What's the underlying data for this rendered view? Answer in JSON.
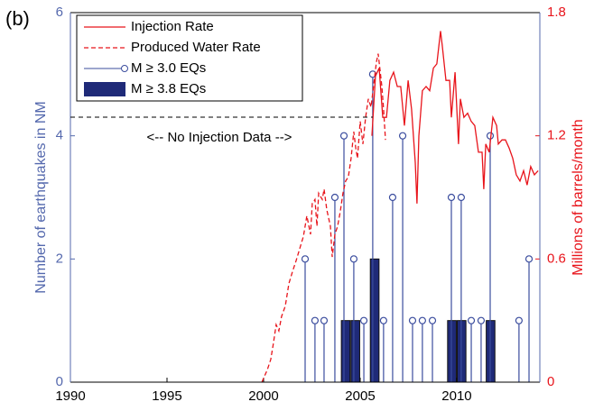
{
  "chart_data": {
    "type": "combo",
    "panel_label": "(b)",
    "annotation": "<-- No Injection Data -->",
    "ylabel": "Number of earthquakes in NM",
    "y2label": "Millions of barrels/month",
    "xlim": [
      1990,
      2014.3
    ],
    "xticks": [
      1990,
      1995,
      2000,
      2005,
      2010
    ],
    "ylim": [
      0,
      6
    ],
    "yticks": [
      0,
      2,
      4,
      6
    ],
    "y2lim": [
      0,
      1.8
    ],
    "y2ticks": [
      0,
      0.6,
      1.2,
      1.8
    ],
    "legend": "upper left",
    "series": [
      {
        "name": "Injection Rate",
        "type": "line",
        "linestyle": "solid",
        "color": "#e8141b",
        "axis": "y2",
        "x": [
          2005.61,
          2005.79,
          2005.98,
          2006.17,
          2006.36,
          2006.54,
          2006.73,
          2006.92,
          2007.1,
          2007.29,
          2007.48,
          2007.66,
          2007.85,
          2007.94,
          2008.04,
          2008.22,
          2008.41,
          2008.6,
          2008.79,
          2008.97,
          2009.16,
          2009.25,
          2009.44,
          2009.63,
          2009.72,
          2009.91,
          2010.09,
          2010.19,
          2010.37,
          2010.56,
          2010.75,
          2010.93,
          2011.12,
          2011.31,
          2011.4,
          2011.5,
          2011.68,
          2011.87,
          2012.06,
          2012.15,
          2012.34,
          2012.52,
          2012.71,
          2012.9,
          2013.08,
          2013.27,
          2013.46,
          2013.64,
          2013.83,
          2014.02,
          2014.21
        ],
        "values": [
          1.2,
          1.49,
          1.53,
          1.29,
          1.29,
          1.47,
          1.51,
          1.44,
          1.44,
          1.25,
          1.47,
          1.33,
          1.07,
          0.87,
          1.2,
          1.42,
          1.44,
          1.42,
          1.53,
          1.55,
          1.71,
          1.64,
          1.47,
          1.47,
          1.29,
          1.51,
          1.16,
          1.38,
          1.29,
          1.31,
          1.27,
          1.25,
          1.12,
          1.12,
          0.94,
          1.16,
          1.12,
          1.29,
          1.25,
          1.16,
          1.18,
          1.18,
          1.14,
          1.09,
          1.01,
          0.98,
          1.03,
          0.96,
          1.05,
          1.01,
          1.03
        ]
      },
      {
        "name": "Produced Water Rate",
        "type": "line",
        "linestyle": "dashed",
        "color": "#e8141b",
        "axis": "y2",
        "x": [
          1999.91,
          2000.19,
          2000.37,
          2000.51,
          2000.65,
          2000.79,
          2000.93,
          2001.12,
          2001.31,
          2001.5,
          2001.68,
          2001.87,
          2002.06,
          2002.24,
          2002.43,
          2002.52,
          2002.66,
          2002.76,
          2002.85,
          2003.04,
          2003.13,
          2003.27,
          2003.46,
          2003.55,
          2003.69,
          2003.83,
          2003.97,
          2004.11,
          2004.25,
          2004.39,
          2004.53,
          2004.67,
          2004.77,
          2004.86,
          2005.0,
          2005.14,
          2005.28,
          2005.42,
          2005.56,
          2005.7,
          2005.84,
          2005.93,
          2006.03,
          2006.12,
          2006.21,
          2006.31
        ],
        "values": [
          0,
          0.06,
          0.11,
          0.19,
          0.28,
          0.25,
          0.32,
          0.37,
          0.48,
          0.54,
          0.59,
          0.65,
          0.71,
          0.81,
          0.72,
          0.87,
          0.89,
          0.76,
          0.92,
          0.89,
          0.94,
          0.84,
          0.76,
          0.61,
          0.72,
          0.76,
          0.83,
          0.92,
          0.98,
          1.0,
          1.09,
          1.22,
          1.14,
          1.09,
          1.27,
          1.16,
          1.29,
          1.38,
          1.34,
          1.45,
          1.56,
          1.6,
          1.52,
          1.44,
          1.33,
          1.18
        ]
      },
      {
        "name": "M ≥ 3.0 EQs",
        "type": "stem",
        "color": "#3b4d9e",
        "x": [
          2002.15,
          2002.66,
          2003.13,
          2003.69,
          2004.16,
          2004.67,
          2005.19,
          2005.65,
          2006.21,
          2006.68,
          2007.2,
          2007.71,
          2008.22,
          2008.74,
          2009.72,
          2010.23,
          2010.75,
          2011.26,
          2011.73,
          2013.22,
          2013.74
        ],
        "values": [
          2,
          1,
          1,
          3,
          4,
          2,
          1,
          5,
          1,
          3,
          4,
          1,
          1,
          1,
          3,
          3,
          1,
          1,
          4,
          1,
          2
        ]
      },
      {
        "name": "M ≥ 3.8 EQs",
        "type": "bar",
        "color": "#1f2a78",
        "x": [
          2004.25,
          2004.75,
          2005.75,
          2009.75,
          2010.25,
          2011.75
        ],
        "values": [
          1,
          1,
          2,
          1,
          1,
          1
        ]
      }
    ]
  }
}
